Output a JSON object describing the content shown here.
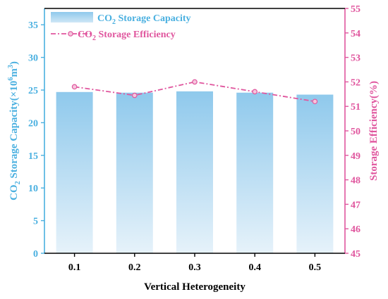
{
  "chart_data": {
    "type": "bar",
    "categories": [
      "0.1",
      "0.2",
      "0.3",
      "0.4",
      "0.5"
    ],
    "x_axis": {
      "label": "Vertical Heterogeneity"
    },
    "y_left": {
      "label_prefix": "CO",
      "label_sub": "2",
      "label_mid": " Storage Capacity(×10",
      "label_sup": "6",
      "label_unit": "m",
      "label_sup2": "3",
      "label_end": ")",
      "min": 0,
      "max": 37.5,
      "ticks": [
        0,
        5,
        10,
        15,
        20,
        25,
        30,
        35
      ],
      "color": "#4ab0e0"
    },
    "y_right": {
      "label": "Storage Efficiency(%)",
      "min": 45,
      "max": 55,
      "ticks": [
        45,
        46,
        47,
        48,
        49,
        50,
        51,
        52,
        53,
        54,
        55
      ],
      "color": "#e0569e"
    },
    "series": [
      {
        "name_prefix": "CO",
        "name_sub": "2",
        "name_rest": " Storage Capacity",
        "kind": "bar",
        "axis": "left",
        "values": [
          24.7,
          24.6,
          24.8,
          24.6,
          24.3
        ]
      },
      {
        "name_prefix": "CO",
        "name_sub": "2",
        "name_rest": " Storage Efficiency",
        "kind": "line",
        "axis": "right",
        "values": [
          51.8,
          51.45,
          52.0,
          51.6,
          51.2
        ]
      }
    ],
    "legend": "top-left",
    "grid": false
  }
}
